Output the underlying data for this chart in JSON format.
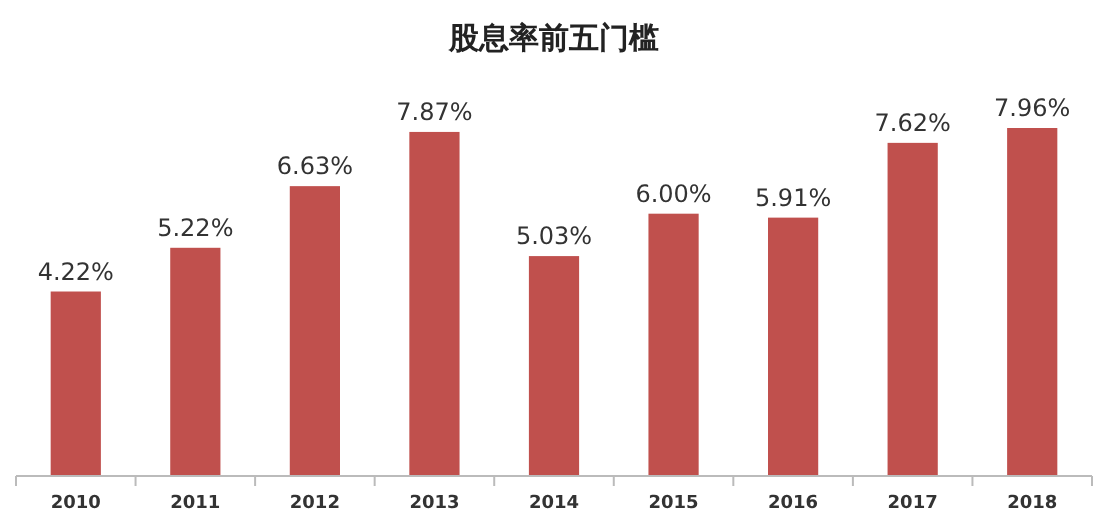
{
  "chart_data": {
    "type": "bar",
    "title": "股息率前五门槛",
    "categories": [
      "2010",
      "2011",
      "2012",
      "2013",
      "2014",
      "2015",
      "2016",
      "2017",
      "2018"
    ],
    "values": [
      4.22,
      5.22,
      6.63,
      7.87,
      5.03,
      6.0,
      5.91,
      7.62,
      7.96
    ],
    "value_labels": [
      "4.22%",
      "5.22%",
      "6.63%",
      "7.87%",
      "5.03%",
      "6.00%",
      "5.91%",
      "7.62%",
      "7.96%"
    ],
    "color": "#c0504d"
  }
}
